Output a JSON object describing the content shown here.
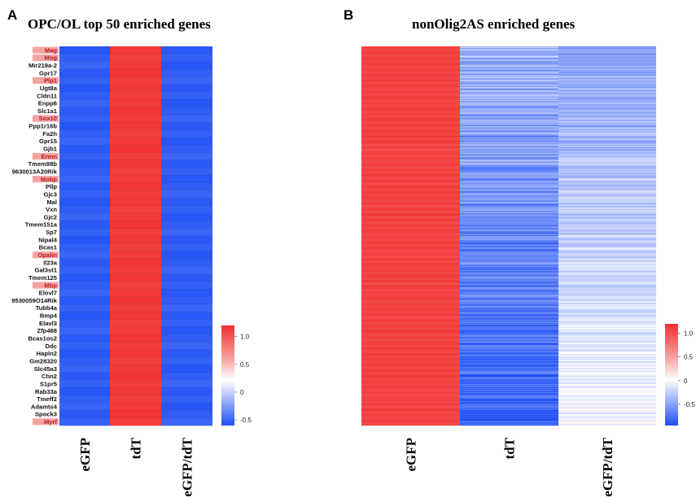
{
  "figure": {
    "panel_a_letter": "A",
    "panel_b_letter": "B"
  },
  "chart_data": [
    {
      "type": "heatmap",
      "title": "OPC/OL top 50 enriched genes",
      "columns": [
        "eGFP",
        "tdT",
        "eGFP/tdT"
      ],
      "rows": [
        "Mag",
        "Mog",
        "Mir219a-2",
        "Gpr17",
        "Plp1",
        "Ugt8a",
        "Cldn11",
        "Enpp6",
        "Slc1a1",
        "Sox10",
        "Ppp1r16b",
        "Fa2h",
        "Gpr15",
        "Gjb1",
        "Ermn",
        "Tmem88b",
        "9630013A20Rik",
        "Mobp",
        "Pllp",
        "Gjc3",
        "Mal",
        "Vxn",
        "Gjc2",
        "Tmem151a",
        "Sp7",
        "Nipal4",
        "Bcas1",
        "Opalin",
        "Il23a",
        "Gal3st1",
        "Tmem125",
        "Mbp",
        "Elovl7",
        "9530059O14Rik",
        "Tubb4a",
        "Bmp4",
        "Elavl3",
        "Zfp488",
        "Bcas1os2",
        "Ddc",
        "Hapln2",
        "Gm28320",
        "Slc45a3",
        "Chn2",
        "S1pr5",
        "Rab33a",
        "Tmeff2",
        "Adamts4",
        "Spock3",
        "Myrf"
      ],
      "highlighted_rows": [
        "Mag",
        "Mog",
        "Plp1",
        "Sox10",
        "Ermn",
        "Mobp",
        "Opalin",
        "Mbp",
        "Myrf"
      ],
      "column_values": [
        -0.55,
        1.15,
        -0.55
      ],
      "colorbar": {
        "ticks": [
          1,
          0.5,
          0,
          -0.5
        ],
        "tick_labels": [
          "1.0",
          "0.5",
          "0",
          "-0.5"
        ],
        "range": [
          -0.6,
          1.2
        ]
      },
      "colors": {
        "low": "#1f4ff5",
        "mid": "#ffffff",
        "high": "#f23030"
      }
    },
    {
      "type": "heatmap",
      "title": "nonOlig2AS  enriched genes",
      "columns": [
        "eGFP",
        "tdT",
        "eGFP/tdT"
      ],
      "row_count": 500,
      "column_patterns": [
        {
          "column": "eGFP",
          "level": "high",
          "approx_value": 1.15
        },
        {
          "column": "tdT",
          "level": "low, mixed",
          "approx_value": -0.6
        },
        {
          "column": "eGFP/tdT",
          "level": "low to near zero, fading downward",
          "approx_value": -0.4
        }
      ],
      "colorbar": {
        "ticks": [
          1,
          0.5,
          0,
          -0.5
        ],
        "tick_labels": [
          "1.0",
          "0.5",
          "0",
          "-0.5"
        ],
        "range": [
          -0.95,
          1.2
        ]
      },
      "colors": {
        "low": "#1f4ff5",
        "mid": "#ffffff",
        "high": "#f23030"
      }
    }
  ]
}
